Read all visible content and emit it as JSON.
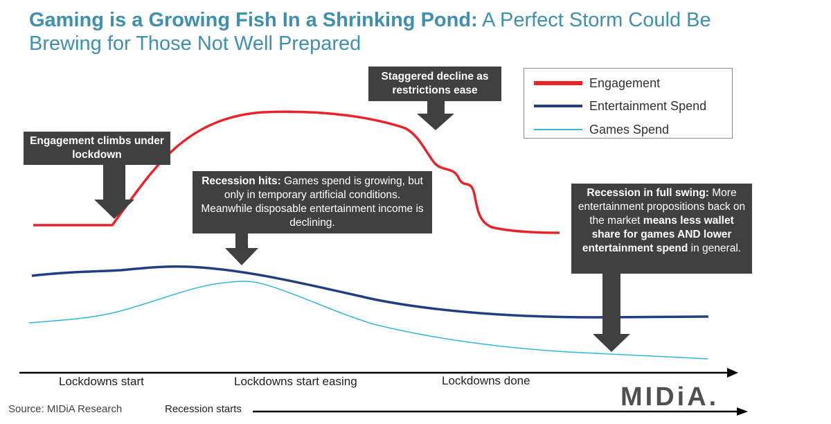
{
  "header": {
    "title_bold": "Gaming is a Growing Fish In a Shrinking Pond:",
    "title_rest": " A Perfect Storm Could Be Brewing for Those Not Well Prepared"
  },
  "annotations": {
    "engagement_climbs": {
      "bold": "Engagement climbs under lockdown"
    },
    "staggered_decline": {
      "bold": "Staggered decline as restrictions ease"
    },
    "recession_hits": {
      "bold": "Recession hits:",
      "text": " Games spend is growing, but only in temporary artificial conditions. Meanwhile disposable entertainment income is declining."
    },
    "full_swing": {
      "bold1": "Recession in full swing:",
      "text1": " More entertainment propositions back on the market ",
      "bold2": "means less wallet share for games AND lower entertainment spend",
      "text2": " in general."
    }
  },
  "footer": {
    "source": "Source: MIDiA Research",
    "recession_starts": "Recession starts",
    "logo": "MIDiA."
  },
  "colors": {
    "engagement": "#e8232a",
    "entertainment": "#1f3f80",
    "games": "#33b5d6",
    "title": "#3e8fb0",
    "box": "#404040"
  },
  "chart_data": {
    "type": "line",
    "x_labels": [
      "Lockdowns start",
      "Lockdowns start easing",
      "Lockdowns done"
    ],
    "legend": {
      "position": "top-right"
    },
    "series": [
      {
        "name": "Engagement",
        "color": "#e8232a"
      },
      {
        "name": "Entertainment Spend",
        "color": "#1f3f80"
      },
      {
        "name": "Games Spend",
        "color": "#33b5d6"
      }
    ]
  }
}
